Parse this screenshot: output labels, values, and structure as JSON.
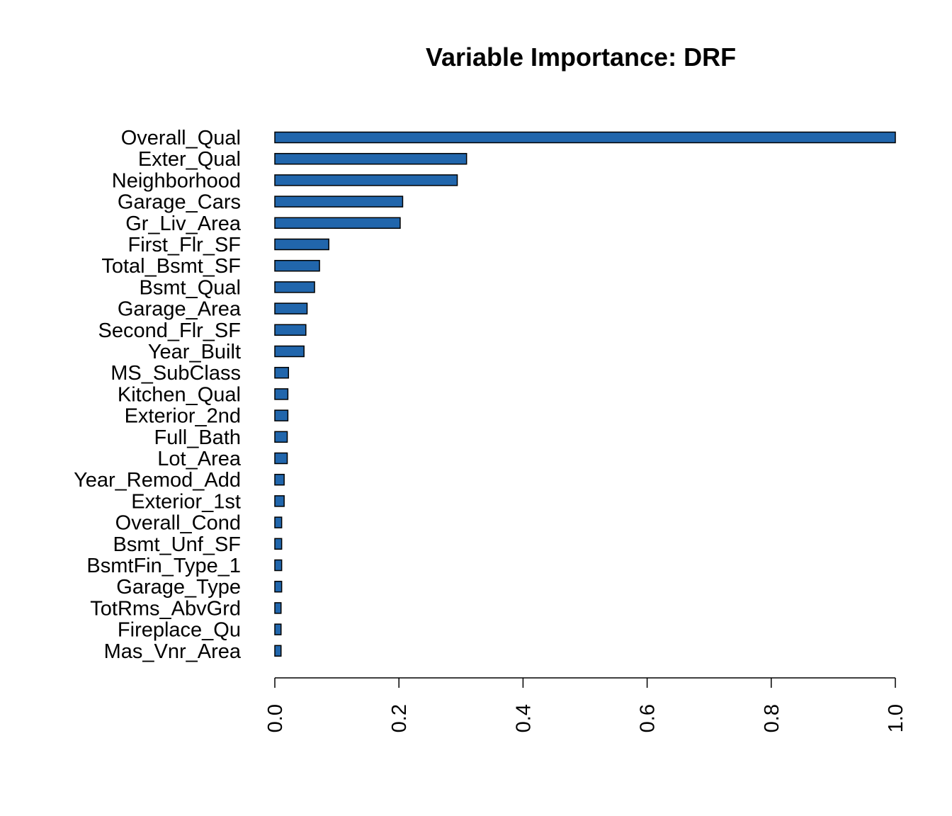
{
  "chart_data": {
    "type": "bar",
    "orientation": "horizontal",
    "title": "Variable Importance: DRF",
    "xlabel": "",
    "ylabel": "",
    "categories": [
      "Overall_Qual",
      "Exter_Qual",
      "Neighborhood",
      "Garage_Cars",
      "Gr_Liv_Area",
      "First_Flr_SF",
      "Total_Bsmt_SF",
      "Bsmt_Qual",
      "Garage_Area",
      "Second_Flr_SF",
      "Year_Built",
      "MS_SubClass",
      "Kitchen_Qual",
      "Exterior_2nd",
      "Full_Bath",
      "Lot_Area",
      "Year_Remod_Add",
      "Exterior_1st",
      "Overall_Cond",
      "Bsmt_Unf_SF",
      "BsmtFin_Type_1",
      "Garage_Type",
      "TotRms_AbvGrd",
      "Fireplace_Qu",
      "Mas_Vnr_Area"
    ],
    "values": [
      1.0,
      0.309,
      0.294,
      0.206,
      0.202,
      0.087,
      0.072,
      0.064,
      0.052,
      0.05,
      0.047,
      0.022,
      0.021,
      0.021,
      0.02,
      0.02,
      0.015,
      0.015,
      0.011,
      0.011,
      0.011,
      0.011,
      0.01,
      0.01,
      0.01
    ],
    "xlim": [
      0,
      1
    ],
    "xticks": [
      "0.0",
      "0.2",
      "0.4",
      "0.6",
      "0.8",
      "1.0"
    ],
    "xtick_values": [
      0,
      0.2,
      0.4,
      0.6,
      0.8,
      1.0
    ],
    "grid": false,
    "legend": "none",
    "colors": {
      "bar_fill": "#2166ac",
      "bar_stroke": "#000000",
      "axis": "#000000",
      "text": "#000000"
    }
  }
}
